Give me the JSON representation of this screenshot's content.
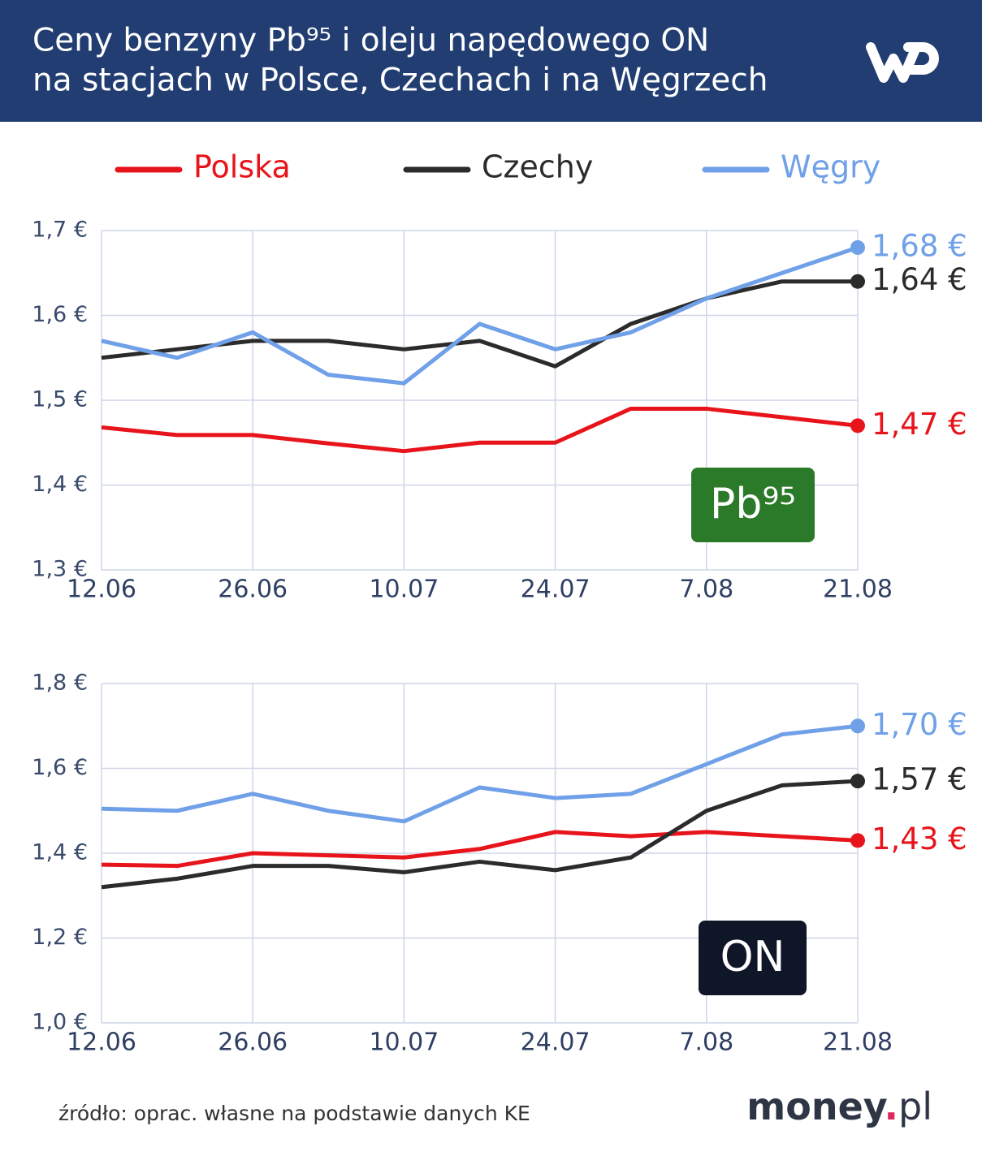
{
  "title": [
    "Ceny benzyny Pb⁹⁵ i oleju napędowego ON",
    "na stacjach w Polsce, Czechach i na Węgrzech"
  ],
  "source": "źródło: oprac. własne na podstawie danych KE",
  "brand": [
    "money",
    ".",
    "pl"
  ],
  "chart_data": [
    {
      "type": "line",
      "badge": "Pb⁹⁵",
      "badge_color": "#2a7a2a",
      "categories": [
        "12.06",
        null,
        "26.06",
        null,
        "10.07",
        null,
        "24.07",
        null,
        "7.08",
        null,
        "21.08"
      ],
      "ylim": [
        1.3,
        1.7
      ],
      "yticks": [
        {
          "value": 1.3,
          "label": "1,3 €"
        },
        {
          "value": 1.4,
          "label": "1,4 €"
        },
        {
          "value": 1.5,
          "label": "1,5 €"
        },
        {
          "value": 1.6,
          "label": "1,6 €"
        },
        {
          "value": 1.7,
          "label": "1,7 €"
        }
      ],
      "grid": true,
      "series": [
        {
          "name": "Polska",
          "color": "#e8141b",
          "values": [
            1.468,
            1.459,
            1.459,
            1.449,
            1.44,
            1.45,
            1.45,
            1.49,
            1.49,
            1.48,
            1.47
          ],
          "value_labels": [
            null,
            null,
            null,
            null,
            null,
            null,
            null,
            null,
            null,
            null,
            "1,47 €"
          ]
        },
        {
          "name": "Czechy",
          "color": "#2b2b2b",
          "values": [
            1.55,
            1.56,
            1.57,
            1.57,
            1.56,
            1.57,
            1.54,
            1.59,
            1.62,
            1.64,
            1.64
          ],
          "value_labels": [
            null,
            null,
            null,
            null,
            null,
            null,
            null,
            null,
            null,
            null,
            "1,64 €"
          ]
        },
        {
          "name": "Węgry",
          "color": "#6fa0e8",
          "values": [
            1.57,
            1.55,
            1.58,
            1.53,
            1.52,
            1.59,
            1.56,
            1.58,
            1.62,
            1.65,
            1.68
          ],
          "value_labels": [
            null,
            null,
            null,
            null,
            null,
            null,
            null,
            null,
            null,
            null,
            "1,68 €"
          ]
        }
      ]
    },
    {
      "type": "line",
      "badge": "ON",
      "badge_color": "#0e1628",
      "categories": [
        "12.06",
        null,
        "26.06",
        null,
        "10.07",
        null,
        "24.07",
        null,
        "7.08",
        null,
        "21.08"
      ],
      "ylim": [
        1.0,
        1.8
      ],
      "yticks": [
        {
          "value": 1.0,
          "label": "1,0 €"
        },
        {
          "value": 1.2,
          "label": "1,2 €"
        },
        {
          "value": 1.4,
          "label": "1,4 €"
        },
        {
          "value": 1.6,
          "label": "1,6 €"
        },
        {
          "value": 1.8,
          "label": "1,8 €"
        }
      ],
      "grid": true,
      "series": [
        {
          "color": "#e8141b",
          "values": [
            1.373,
            1.37,
            1.4,
            1.395,
            1.39,
            1.41,
            1.45,
            1.44,
            1.45,
            1.44,
            1.43
          ],
          "value_labels": [
            null,
            null,
            null,
            null,
            null,
            null,
            null,
            null,
            null,
            null,
            "1,43 €"
          ]
        },
        {
          "color": "#2b2b2b",
          "values": [
            1.32,
            1.34,
            1.37,
            1.37,
            1.355,
            1.38,
            1.36,
            1.39,
            1.5,
            1.56,
            1.57
          ],
          "value_labels": [
            null,
            null,
            null,
            null,
            null,
            null,
            null,
            null,
            null,
            null,
            "1,57 €"
          ]
        },
        {
          "color": "#6fa0e8",
          "values": [
            1.505,
            1.5,
            1.54,
            1.5,
            1.475,
            1.555,
            1.53,
            1.54,
            1.61,
            1.68,
            1.7
          ],
          "value_labels": [
            null,
            null,
            null,
            null,
            null,
            null,
            null,
            null,
            null,
            null,
            "1,70 €"
          ]
        }
      ]
    }
  ]
}
